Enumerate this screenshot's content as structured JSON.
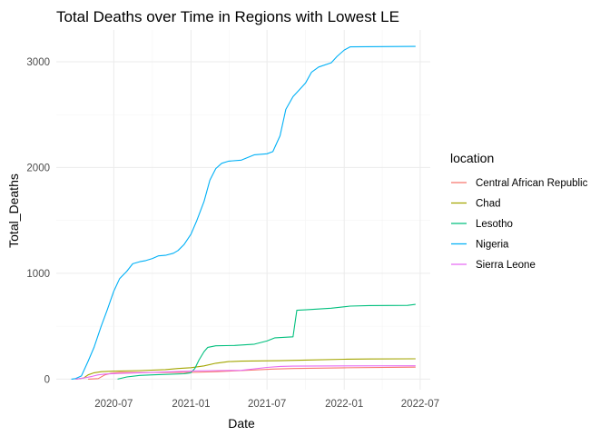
{
  "chart_data": {
    "type": "line",
    "title": "Total Deaths over Time in Regions with Lowest LE",
    "xlabel": "Date",
    "ylabel": "Total_Deaths",
    "x_ticks": [
      "2020-07",
      "2021-01",
      "2021-07",
      "2022-01",
      "2022-07"
    ],
    "y_ticks": [
      0,
      1000,
      2000,
      3000
    ],
    "xlim": [
      "2020-02-15",
      "2022-07-25"
    ],
    "ylim": [
      -100,
      3300
    ],
    "grid": true,
    "legend": {
      "title": "location",
      "position": "right"
    },
    "series": [
      {
        "name": "Central African Republic",
        "color": "#F8766D",
        "points": [
          [
            "2020-05-01",
            0
          ],
          [
            "2020-05-25",
            5
          ],
          [
            "2020-06-10",
            40
          ],
          [
            "2020-06-25",
            55
          ],
          [
            "2020-07-15",
            62
          ],
          [
            "2020-09-01",
            62
          ],
          [
            "2020-12-31",
            63
          ],
          [
            "2021-03-01",
            70
          ],
          [
            "2021-05-01",
            80
          ],
          [
            "2021-07-15",
            95
          ],
          [
            "2021-09-01",
            100
          ],
          [
            "2022-01-01",
            107
          ],
          [
            "2022-06-20",
            113
          ]
        ]
      },
      {
        "name": "Chad",
        "color": "#A3A500",
        "points": [
          [
            "2020-04-01",
            0
          ],
          [
            "2020-04-20",
            10
          ],
          [
            "2020-05-01",
            40
          ],
          [
            "2020-05-15",
            60
          ],
          [
            "2020-06-01",
            70
          ],
          [
            "2020-07-01",
            75
          ],
          [
            "2020-09-01",
            80
          ],
          [
            "2020-11-01",
            90
          ],
          [
            "2020-12-01",
            100
          ],
          [
            "2021-01-01",
            108
          ],
          [
            "2021-02-01",
            125
          ],
          [
            "2021-03-01",
            150
          ],
          [
            "2021-04-01",
            165
          ],
          [
            "2021-05-01",
            170
          ],
          [
            "2021-08-01",
            174
          ],
          [
            "2021-10-01",
            180
          ],
          [
            "2022-01-01",
            188
          ],
          [
            "2022-03-01",
            190
          ],
          [
            "2022-06-20",
            192
          ]
        ]
      },
      {
        "name": "Lesotho",
        "color": "#00BF7D",
        "points": [
          [
            "2020-07-10",
            0
          ],
          [
            "2020-08-01",
            20
          ],
          [
            "2020-09-01",
            35
          ],
          [
            "2020-10-01",
            40
          ],
          [
            "2020-12-15",
            50
          ],
          [
            "2020-12-31",
            60
          ],
          [
            "2021-01-10",
            100
          ],
          [
            "2021-01-20",
            180
          ],
          [
            "2021-02-01",
            260
          ],
          [
            "2021-02-10",
            300
          ],
          [
            "2021-03-01",
            315
          ],
          [
            "2021-04-15",
            318
          ],
          [
            "2021-06-01",
            330
          ],
          [
            "2021-07-01",
            360
          ],
          [
            "2021-07-20",
            390
          ],
          [
            "2021-09-01",
            400
          ],
          [
            "2021-09-10",
            650
          ],
          [
            "2021-10-01",
            655
          ],
          [
            "2021-12-01",
            670
          ],
          [
            "2022-01-15",
            690
          ],
          [
            "2022-03-01",
            695
          ],
          [
            "2022-06-01",
            697
          ],
          [
            "2022-06-20",
            706
          ]
        ]
      },
      {
        "name": "Nigeria",
        "color": "#00B0F6",
        "points": [
          [
            "2020-03-22",
            0
          ],
          [
            "2020-04-01",
            5
          ],
          [
            "2020-04-15",
            30
          ],
          [
            "2020-05-01",
            170
          ],
          [
            "2020-05-15",
            300
          ],
          [
            "2020-06-01",
            500
          ],
          [
            "2020-06-15",
            650
          ],
          [
            "2020-07-01",
            830
          ],
          [
            "2020-07-15",
            950
          ],
          [
            "2020-08-01",
            1020
          ],
          [
            "2020-08-15",
            1090
          ],
          [
            "2020-09-01",
            1110
          ],
          [
            "2020-09-15",
            1120
          ],
          [
            "2020-10-01",
            1140
          ],
          [
            "2020-10-15",
            1165
          ],
          [
            "2020-11-01",
            1170
          ],
          [
            "2020-11-20",
            1190
          ],
          [
            "2020-12-01",
            1215
          ],
          [
            "2020-12-15",
            1270
          ],
          [
            "2021-01-01",
            1370
          ],
          [
            "2021-01-15",
            1500
          ],
          [
            "2021-02-01",
            1680
          ],
          [
            "2021-02-15",
            1880
          ],
          [
            "2021-03-01",
            1990
          ],
          [
            "2021-03-15",
            2040
          ],
          [
            "2021-04-01",
            2060
          ],
          [
            "2021-05-01",
            2070
          ],
          [
            "2021-06-01",
            2120
          ],
          [
            "2021-07-01",
            2130
          ],
          [
            "2021-07-15",
            2150
          ],
          [
            "2021-08-01",
            2300
          ],
          [
            "2021-08-15",
            2550
          ],
          [
            "2021-09-01",
            2670
          ],
          [
            "2021-09-15",
            2730
          ],
          [
            "2021-10-01",
            2800
          ],
          [
            "2021-10-15",
            2900
          ],
          [
            "2021-11-01",
            2950
          ],
          [
            "2021-12-01",
            2990
          ],
          [
            "2021-12-15",
            3050
          ],
          [
            "2022-01-01",
            3110
          ],
          [
            "2022-01-15",
            3140
          ],
          [
            "2022-06-20",
            3145
          ]
        ]
      },
      {
        "name": "Sierra Leone",
        "color": "#E76BF3",
        "points": [
          [
            "2020-04-01",
            0
          ],
          [
            "2020-04-20",
            10
          ],
          [
            "2020-05-10",
            25
          ],
          [
            "2020-05-25",
            40
          ],
          [
            "2020-06-10",
            48
          ],
          [
            "2020-07-01",
            52
          ],
          [
            "2020-09-01",
            60
          ],
          [
            "2020-12-31",
            75
          ],
          [
            "2021-01-15",
            78
          ],
          [
            "2021-03-01",
            80
          ],
          [
            "2021-05-01",
            83
          ],
          [
            "2021-07-01",
            110
          ],
          [
            "2021-08-01",
            120
          ],
          [
            "2021-09-01",
            122
          ],
          [
            "2022-01-01",
            125
          ],
          [
            "2022-06-20",
            126
          ]
        ]
      }
    ]
  }
}
